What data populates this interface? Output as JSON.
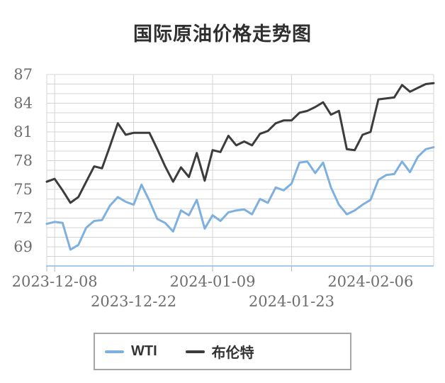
{
  "title": {
    "text": "国际原油价格走势图"
  },
  "colors": {
    "background": "#ffffff",
    "grid": "#d4d4d4",
    "axis_text": "#6e6e6e",
    "x_axis_line": "#a9c9e8",
    "tick_mark": "#b5b5b5",
    "legend_border": "#a6a6a6",
    "title_text": "#2f2f2f"
  },
  "chart_data": {
    "type": "line",
    "title": "国际原油价格走势图",
    "x": [
      "2023-12-07",
      "2023-12-08",
      "2023-12-11",
      "2023-12-12",
      "2023-12-13",
      "2023-12-14",
      "2023-12-15",
      "2023-12-18",
      "2023-12-19",
      "2023-12-20",
      "2023-12-21",
      "2023-12-22",
      "2023-12-26",
      "2023-12-27",
      "2023-12-28",
      "2023-12-29",
      "2024-01-02",
      "2024-01-03",
      "2024-01-04",
      "2024-01-05",
      "2024-01-08",
      "2024-01-09",
      "2024-01-10",
      "2024-01-11",
      "2024-01-12",
      "2024-01-15",
      "2024-01-16",
      "2024-01-17",
      "2024-01-18",
      "2024-01-19",
      "2024-01-22",
      "2024-01-23",
      "2024-01-24",
      "2024-01-25",
      "2024-01-26",
      "2024-01-29",
      "2024-01-30",
      "2024-01-31",
      "2024-02-01",
      "2024-02-02",
      "2024-02-05",
      "2024-02-06",
      "2024-02-07",
      "2024-02-08",
      "2024-02-09",
      "2024-02-12",
      "2024-02-13",
      "2024-02-14",
      "2024-02-15",
      "2024-02-16"
    ],
    "series": [
      {
        "name": "WTI",
        "color": "#7EB0DF",
        "values": [
          71.4,
          71.6,
          71.5,
          68.7,
          69.2,
          71.0,
          71.7,
          71.8,
          73.3,
          74.2,
          73.7,
          73.4,
          75.5,
          73.8,
          71.9,
          71.5,
          70.6,
          72.8,
          72.3,
          73.9,
          70.9,
          72.3,
          71.7,
          72.6,
          72.8,
          72.9,
          72.4,
          74.0,
          73.6,
          75.2,
          74.9,
          75.6,
          77.8,
          77.9,
          76.7,
          77.8,
          75.2,
          73.4,
          72.4,
          72.8,
          73.4,
          73.9,
          76.0,
          76.5,
          76.6,
          77.9,
          76.8,
          78.4,
          79.2,
          79.4
        ]
      },
      {
        "name": "布伦特",
        "color": "#3C3C3C",
        "values": [
          75.8,
          76.1,
          74.9,
          73.6,
          74.2,
          75.8,
          77.4,
          77.2,
          79.5,
          81.9,
          80.7,
          80.9,
          80.9,
          80.9,
          79.2,
          77.4,
          75.8,
          77.3,
          76.3,
          78.8,
          75.9,
          79.1,
          78.9,
          80.6,
          79.6,
          80.0,
          79.6,
          80.8,
          81.1,
          81.9,
          82.2,
          82.2,
          83.0,
          83.2,
          83.6,
          84.1,
          82.8,
          83.2,
          79.2,
          79.1,
          80.7,
          81.0,
          84.4,
          84.5,
          84.6,
          85.9,
          85.2,
          85.6,
          86.0,
          86.1
        ]
      }
    ],
    "ylim": [
      67,
      87
    ],
    "y_tick_labels": [
      69,
      72,
      75,
      78,
      81,
      84,
      87
    ],
    "y_minor_step": 1,
    "x_tick_labels": [
      "2023-12-08",
      "2023-12-22",
      "2024-01-09",
      "2024-01-23",
      "2024-02-06"
    ],
    "x_tick_indices": [
      1,
      11,
      21,
      31,
      41
    ],
    "x_labels_staggered": true,
    "grid": true,
    "legend_position": "bottom"
  }
}
